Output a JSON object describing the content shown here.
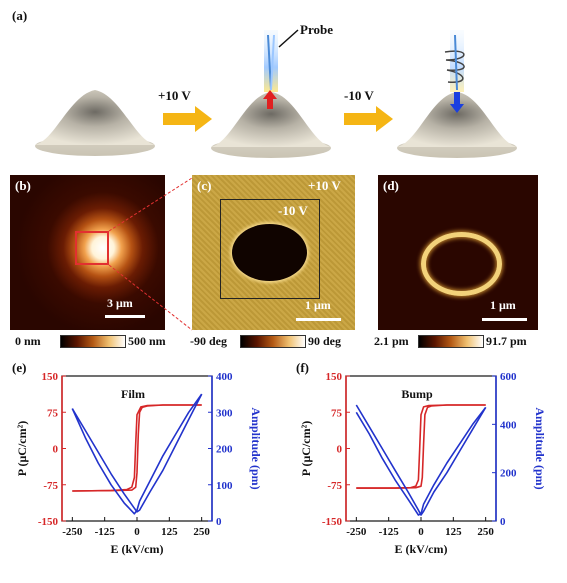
{
  "panel_a": {
    "label": "(a)",
    "probe_label": "Probe",
    "step1_voltage": "+10 V",
    "step2_voltage": "-10 V"
  },
  "panel_b": {
    "label": "(b)",
    "scalebar": "3 μm",
    "colorbar_min": "0 nm",
    "colorbar_max": "500 nm"
  },
  "panel_c": {
    "label": "(c)",
    "outer_voltage": "+10 V",
    "inner_voltage": "-10 V",
    "scalebar": "1 μm",
    "colorbar_min": "-90 deg",
    "colorbar_max": "90 deg"
  },
  "panel_d": {
    "label": "(d)",
    "scalebar": "1 μm",
    "colorbar_min": "2.1 pm",
    "colorbar_max": "91.7 pm"
  },
  "colors": {
    "polarization": "#d62728",
    "amplitude": "#2233cc",
    "arrow": "#f5b514",
    "afm_dark": "#2a0800",
    "pfm_phase_bg": "#c8a23a"
  },
  "chart_data": [
    {
      "type": "line",
      "panel_label": "(e)",
      "annotation": "Film",
      "xlabel": "E (kV/cm)",
      "ylabel_left": "P (μC/cm²)",
      "ylabel_right": "Amplitude (pm)",
      "xlim": [
        -290,
        290
      ],
      "ylim_left": [
        -150,
        150
      ],
      "ylim_right": [
        0,
        400
      ],
      "x_ticks": [
        "-250",
        "-125",
        "0",
        "125",
        "250"
      ],
      "y_ticks_left": [
        "150",
        "75",
        "0",
        "-75",
        "-150"
      ],
      "y_ticks_right": [
        "400",
        "300",
        "200",
        "100",
        "0"
      ],
      "series": [
        {
          "axis": "left",
          "color": "#d62728",
          "branch": "forward",
          "x": [
            -250,
            -100,
            -20,
            -5,
            0,
            5,
            10,
            20,
            40,
            100,
            250
          ],
          "y": [
            -88,
            -87,
            -86,
            -80,
            -50,
            30,
            75,
            85,
            88,
            90,
            90
          ]
        },
        {
          "axis": "left",
          "color": "#d62728",
          "branch": "reverse",
          "x": [
            250,
            100,
            40,
            15,
            0,
            -5,
            -10,
            -20,
            -40,
            -100,
            -250
          ],
          "y": [
            90,
            90,
            89,
            86,
            70,
            10,
            -60,
            -80,
            -85,
            -87,
            -88
          ]
        },
        {
          "axis": "right",
          "color": "#2233cc",
          "branch": "forward",
          "x": [
            -250,
            -200,
            -150,
            -100,
            -50,
            -10,
            0,
            10,
            50,
            100,
            150,
            200,
            250
          ],
          "y": [
            310,
            250,
            190,
            130,
            75,
            35,
            25,
            30,
            80,
            140,
            210,
            280,
            350
          ]
        },
        {
          "axis": "right",
          "color": "#2233cc",
          "branch": "reverse",
          "x": [
            250,
            200,
            150,
            100,
            50,
            10,
            0,
            -10,
            -50,
            -100,
            -150,
            -200,
            -250
          ],
          "y": [
            350,
            300,
            240,
            180,
            110,
            55,
            30,
            20,
            50,
            100,
            160,
            230,
            310
          ]
        }
      ]
    },
    {
      "type": "line",
      "panel_label": "(f)",
      "annotation": "Bump",
      "xlabel": "E (kV/cm)",
      "ylabel_left": "P (μC/cm²)",
      "ylabel_right": "Amplitude (pm)",
      "xlim": [
        -290,
        290
      ],
      "ylim_left": [
        -150,
        150
      ],
      "ylim_right": [
        0,
        600
      ],
      "x_ticks": [
        "-250",
        "-125",
        "0",
        "125",
        "250"
      ],
      "y_ticks_left": [
        "150",
        "75",
        "0",
        "-75",
        "-150"
      ],
      "y_ticks_right": [
        "600",
        "400",
        "200",
        "0"
      ],
      "series": [
        {
          "axis": "left",
          "color": "#d62728",
          "branch": "forward",
          "x": [
            -250,
            -100,
            -20,
            0,
            5,
            10,
            15,
            25,
            40,
            100,
            250
          ],
          "y": [
            -82,
            -82,
            -81,
            -78,
            -60,
            10,
            70,
            85,
            88,
            90,
            90
          ]
        },
        {
          "axis": "left",
          "color": "#d62728",
          "branch": "reverse",
          "x": [
            250,
            100,
            30,
            10,
            0,
            -5,
            -10,
            -20,
            -40,
            -100,
            -250
          ],
          "y": [
            90,
            90,
            89,
            86,
            70,
            0,
            -65,
            -78,
            -81,
            -82,
            -82
          ]
        },
        {
          "axis": "right",
          "color": "#2233cc",
          "branch": "forward",
          "x": [
            -250,
            -200,
            -150,
            -100,
            -50,
            -10,
            0,
            10,
            50,
            100,
            150,
            200,
            250
          ],
          "y": [
            480,
            390,
            300,
            210,
            120,
            45,
            25,
            40,
            120,
            200,
            290,
            380,
            470
          ]
        },
        {
          "axis": "right",
          "color": "#2233cc",
          "branch": "reverse",
          "x": [
            250,
            200,
            150,
            100,
            50,
            10,
            0,
            -10,
            -50,
            -100,
            -150,
            -200,
            -250
          ],
          "y": [
            470,
            400,
            320,
            240,
            150,
            70,
            30,
            25,
            90,
            170,
            260,
            360,
            450
          ]
        }
      ]
    }
  ]
}
